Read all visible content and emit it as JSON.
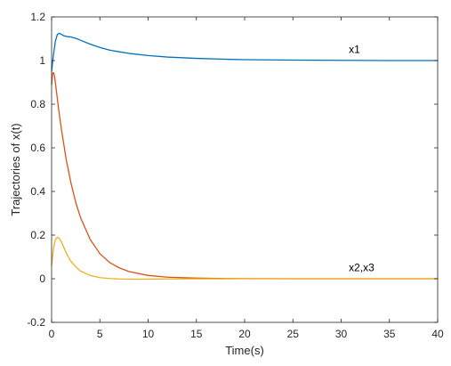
{
  "chart_data": {
    "type": "line",
    "xlabel": "Time(s)",
    "ylabel": "Trajectories of x(t)",
    "xlim": [
      0,
      40
    ],
    "ylim": [
      -0.2,
      1.2
    ],
    "xticks": [
      0,
      5,
      10,
      15,
      20,
      25,
      30,
      35,
      40
    ],
    "yticks": [
      -0.2,
      0,
      0.2,
      0.4,
      0.6,
      0.8,
      1,
      1.2
    ],
    "xtick_labels": [
      "0",
      "5",
      "10",
      "15",
      "20",
      "25",
      "30",
      "35",
      "40"
    ],
    "ytick_labels": [
      "-0.2",
      "0",
      "0.2",
      "0.4",
      "0.6",
      "0.8",
      "1",
      "1.2"
    ],
    "grid": false,
    "box": true,
    "series": [
      {
        "color": "#0072BD",
        "x": [
          0,
          0.2,
          0.4,
          0.6,
          0.8,
          1.0,
          1.3,
          1.6,
          2.0,
          2.5,
          3,
          4,
          5,
          6,
          7,
          8,
          10,
          12,
          15,
          18,
          20,
          25,
          30,
          35,
          40
        ],
        "y": [
          0.95,
          1.03,
          1.09,
          1.12,
          1.125,
          1.12,
          1.113,
          1.11,
          1.108,
          1.102,
          1.093,
          1.075,
          1.06,
          1.048,
          1.04,
          1.033,
          1.023,
          1.016,
          1.01,
          1.006,
          1.004,
          1.002,
          1.001,
          1.0,
          1.0
        ]
      },
      {
        "color": "#D95319",
        "x": [
          0,
          0.1,
          0.2,
          0.3,
          0.5,
          0.75,
          1,
          1.5,
          2,
          2.5,
          3,
          4,
          5,
          6,
          7,
          8,
          10,
          12,
          15,
          18,
          20,
          25,
          30,
          35,
          40
        ],
        "y": [
          0.89,
          0.94,
          0.945,
          0.93,
          0.86,
          0.77,
          0.69,
          0.55,
          0.44,
          0.35,
          0.28,
          0.18,
          0.115,
          0.075,
          0.05,
          0.033,
          0.015,
          0.007,
          0.003,
          0.001,
          0.0005,
          0,
          0,
          0,
          0
        ]
      },
      {
        "color": "#EDB120",
        "x": [
          0,
          0.2,
          0.4,
          0.6,
          0.8,
          1.0,
          1.3,
          1.6,
          2,
          2.5,
          3,
          4,
          5,
          6,
          7,
          8,
          10,
          12,
          15,
          20,
          25,
          30,
          35,
          40
        ],
        "y": [
          0.06,
          0.14,
          0.18,
          0.19,
          0.185,
          0.17,
          0.14,
          0.11,
          0.08,
          0.055,
          0.035,
          0.015,
          0.005,
          0.001,
          -0.001,
          -0.002,
          -0.002,
          -0.001,
          -0.0005,
          0,
          0,
          0,
          0,
          0
        ]
      }
    ],
    "annotations": [
      {
        "text": "x1",
        "x": 30.8,
        "y": 1.035
      },
      {
        "text": "x2,x3",
        "x": 30.8,
        "y": 0.035
      }
    ]
  }
}
